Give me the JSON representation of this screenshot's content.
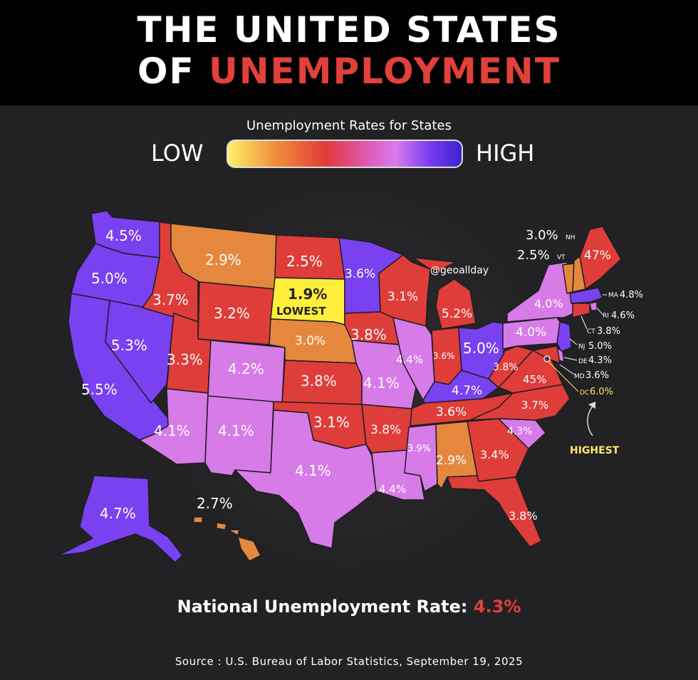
{
  "title": {
    "line1": "THE UNITED STATES",
    "line2_prefix": "OF ",
    "line2_accent": "UNEMPLOYMENT"
  },
  "legend": {
    "title": "Unemployment Rates for States",
    "low": "LOW",
    "high": "HIGH"
  },
  "colors": {
    "lowest": "#ffef3a",
    "orange": "#e5883e",
    "red": "#df3d3a",
    "pink": "#d77be8",
    "purple": "#7a41f0",
    "accent": "#e2403b"
  },
  "credit": "@geoallday",
  "lowest_label": "LOWEST",
  "highest_label": "HIGHEST",
  "states": {
    "WA": "4.5%",
    "OR": "5.0%",
    "CA": "5.5%",
    "NV": "5.3%",
    "ID": "3.7%",
    "MT": "2.9%",
    "WY": "3.2%",
    "UT": "3.3%",
    "CO": "4.2%",
    "AZ": "4.1%",
    "NM": "4.1%",
    "ND": "2.5%",
    "SD": "1.9%",
    "NE": "3.0%",
    "KS": "3.8%",
    "OK": "3.1%",
    "TX": "4.1%",
    "MN": "3.6%",
    "IA": "3.8%",
    "MO": "4.1%",
    "AR": "3.8%",
    "LA": "4.4%",
    "WI": "3.1%",
    "IL": "4.4%",
    "MI": "5.2%",
    "IN": "3.6%",
    "OH": "5.0%",
    "KY": "4.7%",
    "TN": "3.6%",
    "MS": "3.9%",
    "AL": "2.9%",
    "GA": "3.4%",
    "FL": "3.8%",
    "SC": "4.3%",
    "NC": "3.7%",
    "VA": "45%",
    "WV": "3.8%",
    "PA": "4.0%",
    "NY": "4.0%",
    "ME": "47%",
    "AK": "4.7%",
    "HI": "2.7%"
  },
  "northeast": [
    {
      "abbr": "NH",
      "value": "3.0%"
    },
    {
      "abbr": "VT",
      "value": "2.5%"
    },
    {
      "abbr": "MA",
      "value": "4.8%"
    },
    {
      "abbr": "RI",
      "value": "4.6%"
    },
    {
      "abbr": "CT",
      "value": "3.8%"
    },
    {
      "abbr": "NJ",
      "value": "5.0%"
    },
    {
      "abbr": "DE",
      "value": "4.3%"
    },
    {
      "abbr": "MD",
      "value": "3.6%"
    },
    {
      "abbr": "DC",
      "value": "6.0%"
    }
  ],
  "national": {
    "label": "National Unemployment Rate: ",
    "value": "4.3%"
  },
  "source": "Source : U.S. Bureau of Labor Statistics, September 19, 2025"
}
